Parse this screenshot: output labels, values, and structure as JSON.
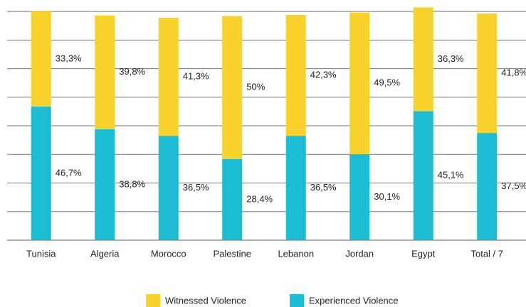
{
  "chart_data": {
    "type": "stacked_bar",
    "categories": [
      "Tunisia",
      "Algeria",
      "Morocco",
      "Palestine",
      "Lebanon",
      "Jordan",
      "Egypt",
      "Total / 7"
    ],
    "series": [
      {
        "name": "Witnessed Violence",
        "color": "#f9d12b",
        "values": [
          33.3,
          39.8,
          41.3,
          50,
          42.3,
          49.5,
          36.3,
          41.8
        ],
        "value_labels": [
          "33,3%",
          "39,8%",
          "41,3%",
          "50%",
          "42,3%",
          "49,5%",
          "36,3%",
          "41,8%"
        ]
      },
      {
        "name": "Experienced Violence",
        "color": "#1bbcd4",
        "values": [
          46.7,
          38.8,
          36.5,
          28.4,
          36.5,
          30.1,
          45.1,
          37.5
        ],
        "value_labels": [
          "46,7%",
          "38,8%",
          "36,5%",
          "28,4%",
          "36,5%",
          "30,1%",
          "45,1%",
          "37,5%"
        ]
      }
    ],
    "ylim": [
      0,
      84
    ],
    "yticks": [
      0,
      10,
      20,
      30,
      40,
      50,
      60,
      70,
      80
    ],
    "grid": true,
    "legend": "bottom"
  }
}
